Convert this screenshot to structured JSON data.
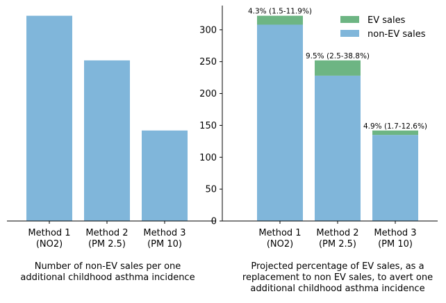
{
  "colors": {
    "ev": "#6db583",
    "non_ev": "#80b6da",
    "axis": "#000000"
  },
  "chart_data": [
    {
      "type": "bar",
      "categories": [
        "Method 1\n(NO2)",
        "Method 2\n(PM 2.5)",
        "Method 3\n(PM 10)"
      ],
      "series": [
        {
          "values": [
            322,
            252,
            142
          ]
        }
      ],
      "ylim": [
        0,
        338
      ],
      "yaxis_shown": false,
      "xlabel": "Number of non-EV sales per one\nadditional childhood asthma incidence",
      "ylabel": ""
    },
    {
      "type": "bar",
      "stacked": true,
      "categories": [
        "Method 1\n(NO2)",
        "Method 2\n(PM 2.5)",
        "Method 3\n(PM 10)"
      ],
      "series": [
        {
          "name": "non-EV sales",
          "values": [
            308,
            228,
            135
          ]
        },
        {
          "name": "EV sales",
          "values": [
            14,
            24,
            7
          ]
        }
      ],
      "data_labels": [
        "4.3% (1.5-11.9%)",
        "9.5% (2.5-38.8%)",
        "4.9% (1.7-12.6%)"
      ],
      "ylim": [
        0,
        338
      ],
      "yticks": [
        0,
        50,
        100,
        150,
        200,
        250,
        300
      ],
      "legend": {
        "position": "top-right",
        "entries": [
          "EV sales",
          "non-EV sales"
        ]
      },
      "xlabel": "Projected percentage of EV sales, as a\nreplacement to non EV sales, to avert one\nadditional childhood asthma incidence",
      "ylabel": ""
    }
  ]
}
